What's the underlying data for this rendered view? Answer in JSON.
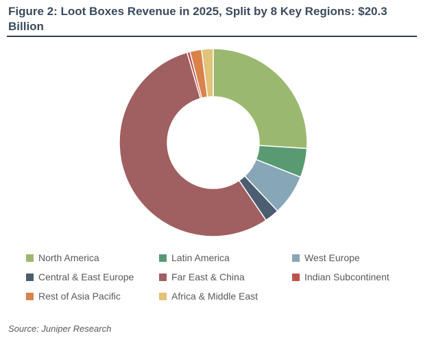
{
  "header": {
    "title": "Figure 2: Loot Boxes Revenue in 2025, Split by 8 Key Regions: $20.3 Billion"
  },
  "footer": {
    "source": "Source: Juniper Research"
  },
  "chart_data": {
    "type": "pie",
    "title": "Figure 2: Loot Boxes Revenue in 2025, Split by 8 Key Regions: $20.3 Billion",
    "total": "$20.3 Billion",
    "unit": "share of revenue (%)",
    "donut": true,
    "legend_position": "bottom",
    "categories": [
      "North America",
      "Latin America",
      "West Europe",
      "Central & East Europe",
      "Far East & China",
      "Indian Subcontinent",
      "Rest of Asia Pacific",
      "Africa & Middle East"
    ],
    "values": [
      26.0,
      5.0,
      7.0,
      2.5,
      55.0,
      0.5,
      2.0,
      2.0
    ],
    "colors": [
      "#9bb86f",
      "#5a9a73",
      "#87a7b8",
      "#4b5d70",
      "#a05f60",
      "#c0504d",
      "#d9824b",
      "#e3c27a"
    ]
  }
}
